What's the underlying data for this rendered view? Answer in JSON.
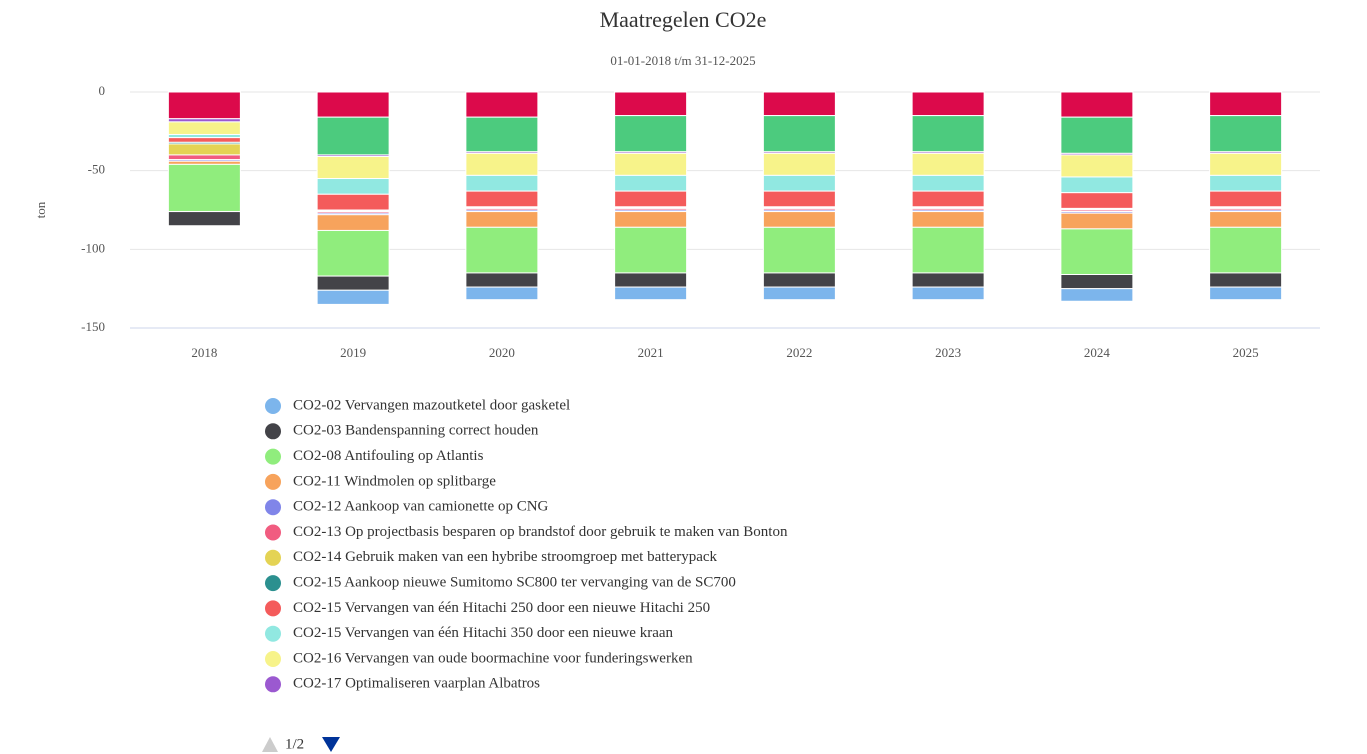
{
  "chart_data": {
    "type": "bar",
    "stacked": true,
    "title": "Maatregelen CO2e",
    "subtitle": "01-01-2018 t/m 31-12-2025",
    "y_label": "ton",
    "categories": [
      "2018",
      "2019",
      "2020",
      "2021",
      "2022",
      "2023",
      "2024",
      "2025"
    ],
    "ylim": [
      -150,
      0
    ],
    "yticks": [
      0,
      -50,
      -100,
      -150
    ],
    "grid": true,
    "series": [
      {
        "name": "CO2-02 Vervangen mazoutketel door gasketel",
        "color": "#7cb5ec",
        "values": [
          0,
          -9,
          -8,
          -8,
          -8,
          -8,
          -8,
          -8
        ]
      },
      {
        "name": "CO2-03 Bandenspanning correct houden",
        "color": "#434348",
        "values": [
          -9,
          -9,
          -9,
          -9,
          -9,
          -9,
          -9,
          -9
        ]
      },
      {
        "name": "CO2-08 Antifouling op Atlantis",
        "color": "#90ed7d",
        "values": [
          -30,
          -29,
          -29,
          -29,
          -29,
          -29,
          -29,
          -29
        ]
      },
      {
        "name": "CO2-11 Windmolen op splitbarge",
        "color": "#f7a35c",
        "values": [
          -2,
          -10,
          -10,
          -10,
          -10,
          -10,
          -10,
          -10
        ]
      },
      {
        "name": "CO2-12 Aankoop van camionette op CNG",
        "color": "#8085e9",
        "values": [
          -1,
          -1,
          -1,
          -1,
          -1,
          -1,
          -1,
          -1
        ]
      },
      {
        "name": "CO2-13 Op projectbasis besparen op brandstof door gebruik te maken van Bonton",
        "color": "#f15c80",
        "values": [
          -3,
          -1,
          -1,
          -1,
          -1,
          -1,
          -1,
          -1
        ]
      },
      {
        "name": "CO2-14 Gebruik maken van een hybribe stroomgroep met batterypack",
        "color": "#e4d354",
        "values": [
          -7,
          -0.5,
          -0.5,
          -0.5,
          -0.5,
          -0.5,
          -0.5,
          -0.5
        ]
      },
      {
        "name": "CO2-15 Aankoop nieuwe Sumitomo SC800 ter vervanging van de SC700",
        "color": "#2b908f",
        "values": [
          -1,
          -0.5,
          -0.5,
          -0.5,
          -0.5,
          -0.5,
          -0.5,
          -0.5
        ]
      },
      {
        "name": "CO2-15 Vervangen van één Hitachi 250 door een nieuwe Hitachi 250",
        "color": "#f45b5b",
        "values": [
          -3,
          -10,
          -10,
          -10,
          -10,
          -10,
          -10,
          -10
        ]
      },
      {
        "name": "CO2-15 Vervangen van één Hitachi 350 door een nieuwe kraan",
        "color": "#91e8e1",
        "values": [
          -2,
          -10,
          -10,
          -10,
          -10,
          -10,
          -10,
          -10
        ]
      },
      {
        "name": "CO2-16 Vervangen van oude boormachine voor funderingswerken",
        "color": "#f7f38a",
        "values": [
          -8,
          -14,
          -14,
          -14,
          -14,
          -14,
          -14,
          -14
        ]
      },
      {
        "name": "CO2-17 Optimaliseren vaarplan Albatros",
        "color": "#9b59d0",
        "values": [
          -2,
          -1,
          -1,
          -1,
          -1,
          -1,
          -1,
          -1
        ]
      },
      {
        "color": "#4ccb7e",
        "values": [
          0,
          -24,
          -22,
          -23,
          -23,
          -23,
          -23,
          -23
        ]
      },
      {
        "color": "#dc0a4b",
        "values": [
          -17,
          -16,
          -16,
          -15,
          -15,
          -15,
          -16,
          -15
        ]
      }
    ],
    "legend_page": "1/2"
  }
}
